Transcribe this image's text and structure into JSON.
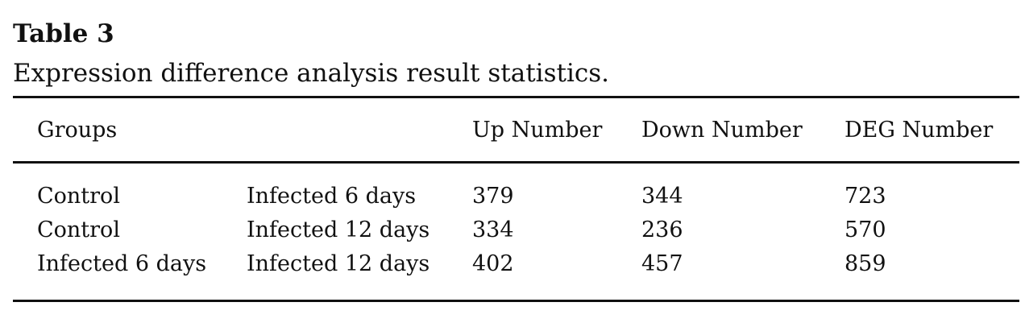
{
  "table": {
    "label": "Table 3",
    "caption": "Expression difference analysis result statistics.",
    "headers": {
      "groups": "Groups",
      "up": "Up Number",
      "down": "Down Number",
      "deg": "DEG Number"
    },
    "rows": [
      {
        "group_a": "Control",
        "group_b": "Infected 6 days",
        "up": "379",
        "down": "344",
        "deg": "723"
      },
      {
        "group_a": "Control",
        "group_b": "Infected 12 days",
        "up": "334",
        "down": "236",
        "deg": "570"
      },
      {
        "group_a": "Infected 6 days",
        "group_b": "Infected 12 days",
        "up": "402",
        "down": "457",
        "deg": "859"
      }
    ]
  }
}
